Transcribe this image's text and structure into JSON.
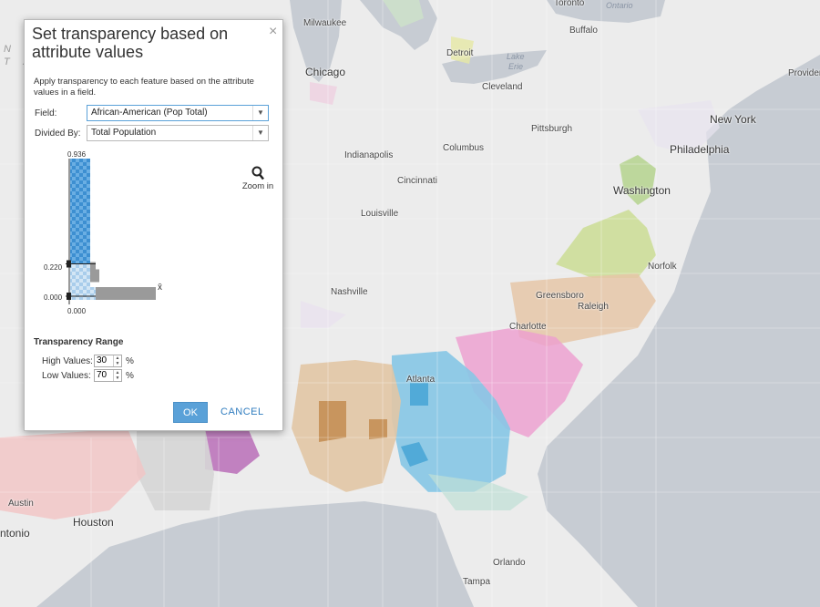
{
  "map": {
    "cities": [
      {
        "name": "Milwaukee"
      },
      {
        "name": "Toronto"
      },
      {
        "name": "Buffalo"
      },
      {
        "name": "Detroit"
      },
      {
        "name": "Chicago"
      },
      {
        "name": "Cleveland"
      },
      {
        "name": "New York"
      },
      {
        "name": "Providen"
      },
      {
        "name": "Pittsburgh"
      },
      {
        "name": "Philadelphia"
      },
      {
        "name": "Indianapolis"
      },
      {
        "name": "Columbus"
      },
      {
        "name": "Cincinnati"
      },
      {
        "name": "Washington"
      },
      {
        "name": "Louisville"
      },
      {
        "name": "Norfolk"
      },
      {
        "name": "Nashville"
      },
      {
        "name": "Greensboro"
      },
      {
        "name": "Raleigh"
      },
      {
        "name": "Charlotte"
      },
      {
        "name": "Atlanta"
      },
      {
        "name": "Austin"
      },
      {
        "name": "Houston"
      },
      {
        "name": "ntonio"
      },
      {
        "name": "Orlando"
      },
      {
        "name": "Tampa"
      }
    ],
    "water_labels": [
      "Ontario",
      "Lake",
      "Erie"
    ],
    "edge_text": [
      "N I",
      "T A"
    ]
  },
  "dialog": {
    "title": "Set transparency based on attribute values",
    "close_symbol": "×",
    "description": "Apply transparency to each feature based on the attribute values in a field.",
    "field_label": "Field:",
    "field_value": "African-American (Pop Total)",
    "divided_by_label": "Divided By:",
    "divided_by_value": "Total Population",
    "caret": "▼",
    "histogram": {
      "max_label": "0.936",
      "high_label": "0.220",
      "low_label": "0.000",
      "min_label": "0.000",
      "mean_symbol": "x̄",
      "high_value": 0.22,
      "low_value": 0.0,
      "max_value": 0.936
    },
    "zoom_in_label": "Zoom in",
    "range_title": "Transparency Range",
    "high_values_label": "High Values:",
    "high_values": "30",
    "low_values_label": "Low Values:",
    "low_values": "70",
    "percent": "%",
    "ok_label": "OK",
    "cancel_label": "CANCEL"
  },
  "colors": {
    "accent": "#5aa1d8",
    "cancel": "#2f7cbf",
    "histogram_bar": "#3d8fd1",
    "histogram_gray": "#9a9a9a"
  }
}
